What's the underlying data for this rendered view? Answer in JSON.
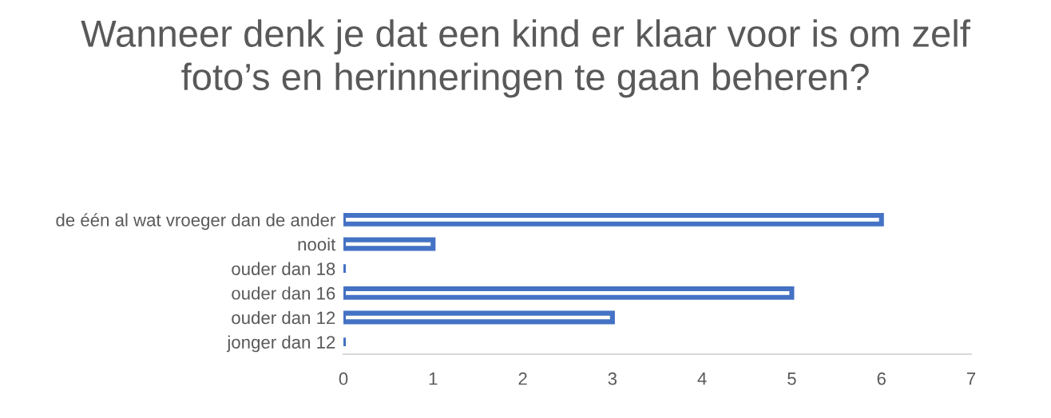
{
  "chart_data": {
    "type": "bar",
    "orientation": "horizontal",
    "title": "Wanneer denk je dat een kind er klaar voor is om zelf foto’s en herinneringen te gaan beheren?",
    "categories": [
      "de één al wat vroeger dan de ander",
      "nooit",
      "ouder dan 18",
      "ouder dan 16",
      "ouder dan 12",
      "jonger dan 12"
    ],
    "values": [
      6,
      1,
      0,
      5,
      3,
      0
    ],
    "color": "#4472c4",
    "xlim": [
      0,
      7
    ],
    "xticks": [
      0,
      1,
      2,
      3,
      4,
      5,
      6,
      7
    ],
    "grid": false,
    "legend": false
  }
}
